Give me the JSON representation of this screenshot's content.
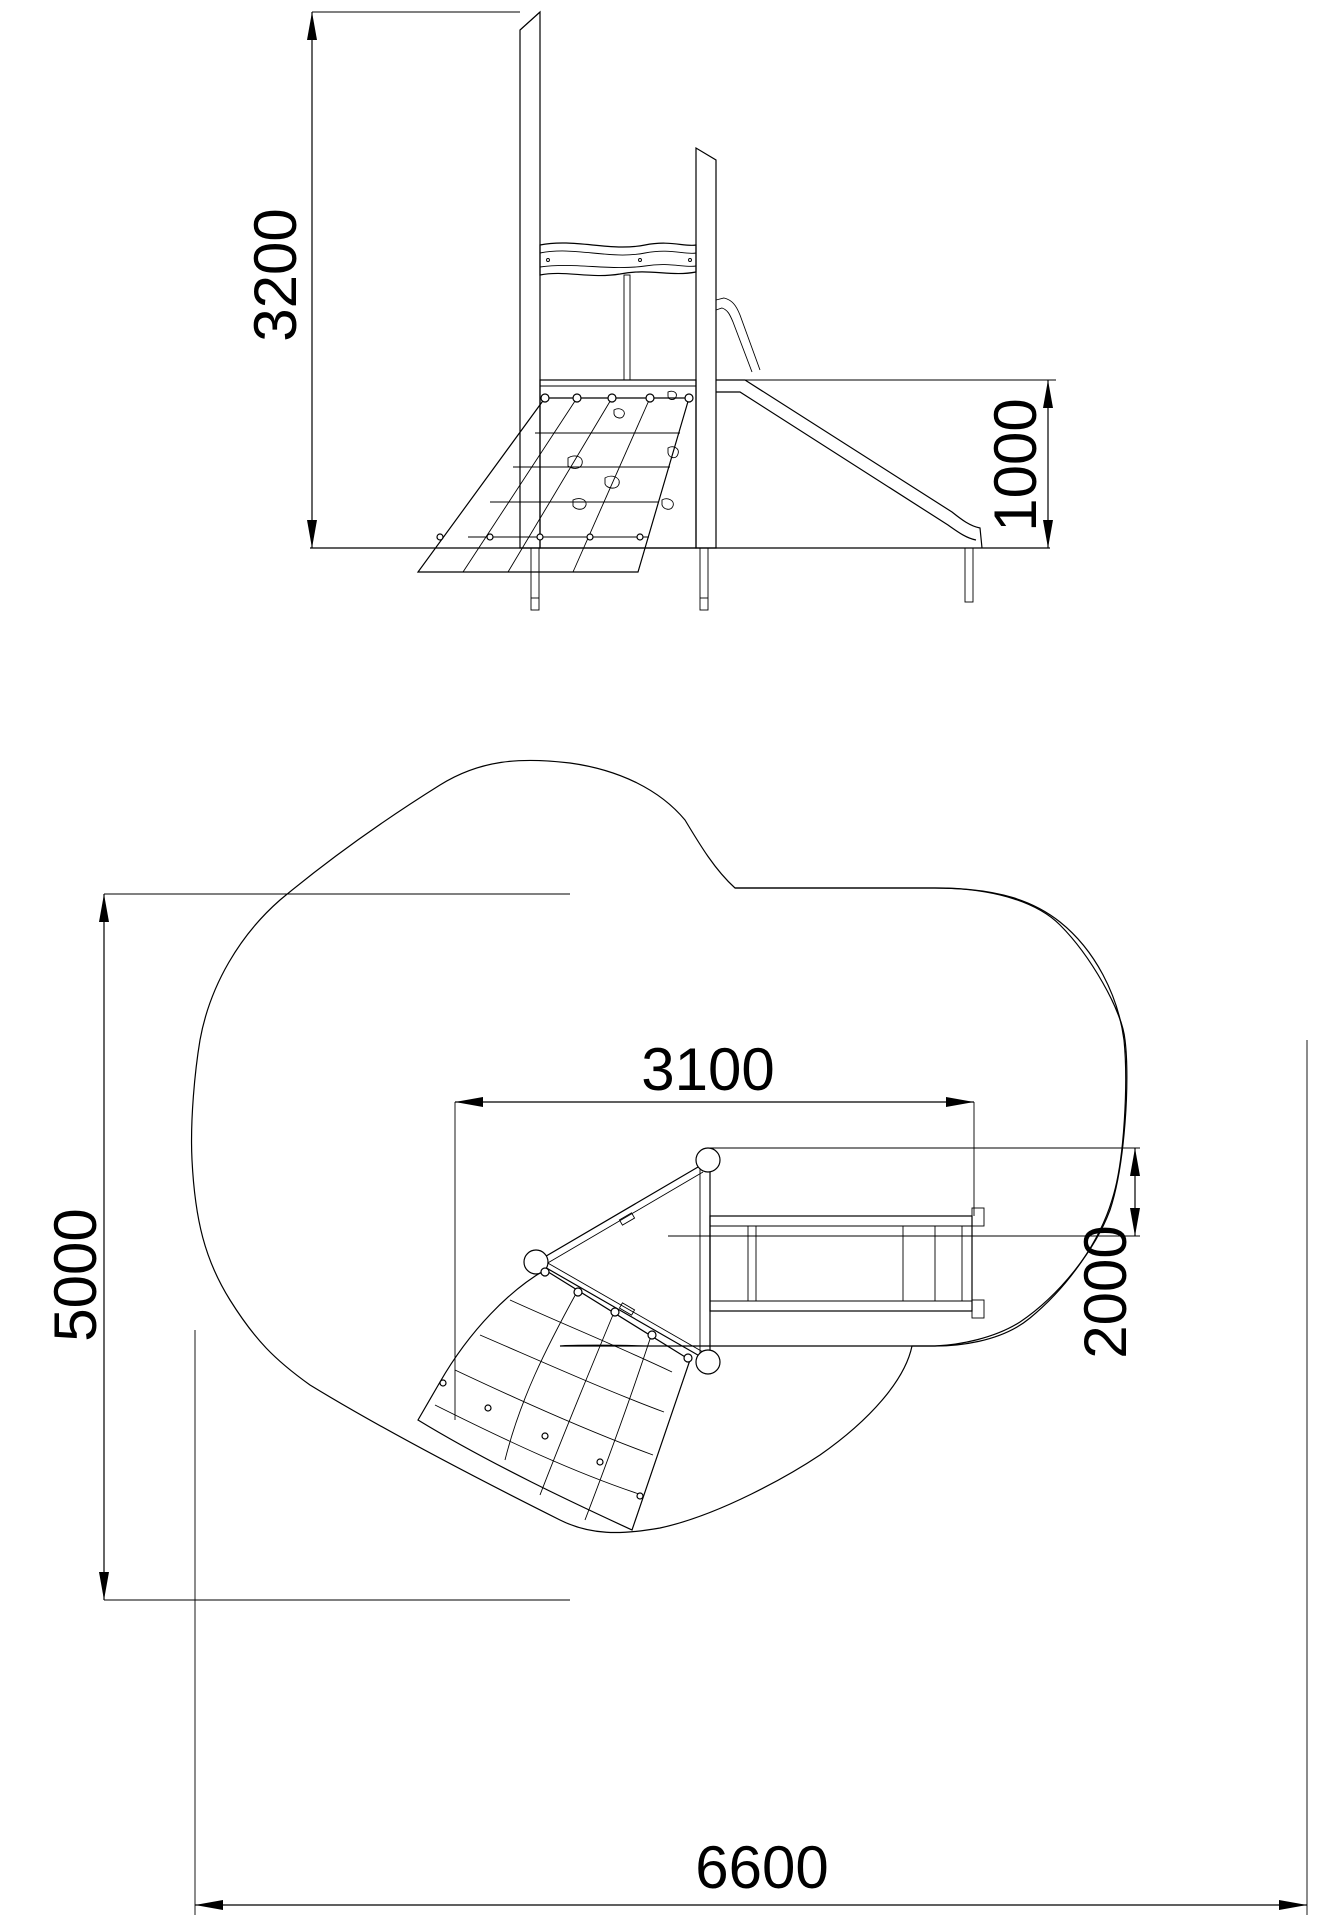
{
  "elevation": {
    "dim_height_total": "3200",
    "dim_height_platform": "1000"
  },
  "plan": {
    "dim_depth_total": "5000",
    "dim_width_total": "6600",
    "dim_width_structure": "3100",
    "dim_depth_structure": "2000"
  }
}
